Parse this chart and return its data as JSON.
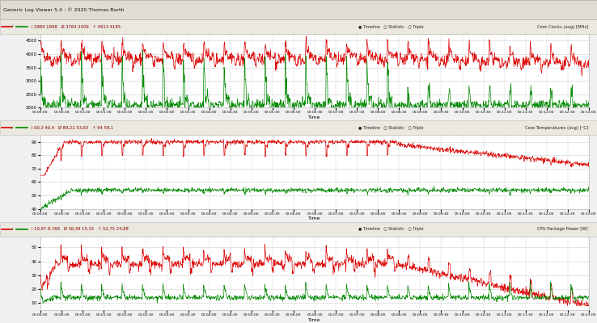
{
  "title": "Generic Log Viewer 5.4 - © 2020 Thomas Barth",
  "bg_color": "#f0f0f0",
  "toolbar_bg": "#e8e4dc",
  "panel_header_bg": "#e0e0e0",
  "plot_bg": "#ffffff",
  "grid_color": "#d0d0d0",
  "red_color": "#dd0000",
  "green_color": "#008800",
  "n_points": 1560,
  "time_max": 780,
  "panels": [
    {
      "ylabel": "Core Clocks (avg) [MHz]",
      "ylim": [
        2000,
        4750
      ],
      "yticks": [
        2000,
        2500,
        3000,
        3500,
        4000,
        4500
      ],
      "stats": "i 2884 1998   Ø 3764 2409   ↑ 4913 4185"
    },
    {
      "ylabel": "Core Temperatures (avg) [°C]",
      "ylim": [
        40,
        95
      ],
      "yticks": [
        40,
        50,
        60,
        70,
        80,
        90
      ],
      "stats": "i 60,3 40,4   Ø 89,21 53,63   ↑ 94 58,1"
    },
    {
      "ylabel": "CPU Package Power [W]",
      "ylim": [
        5,
        58
      ],
      "yticks": [
        10,
        20,
        30,
        40,
        50
      ],
      "stats": "i 10,97 8,768   Ø 36,39 15,15   ↑ 52,75 24,88"
    }
  ]
}
